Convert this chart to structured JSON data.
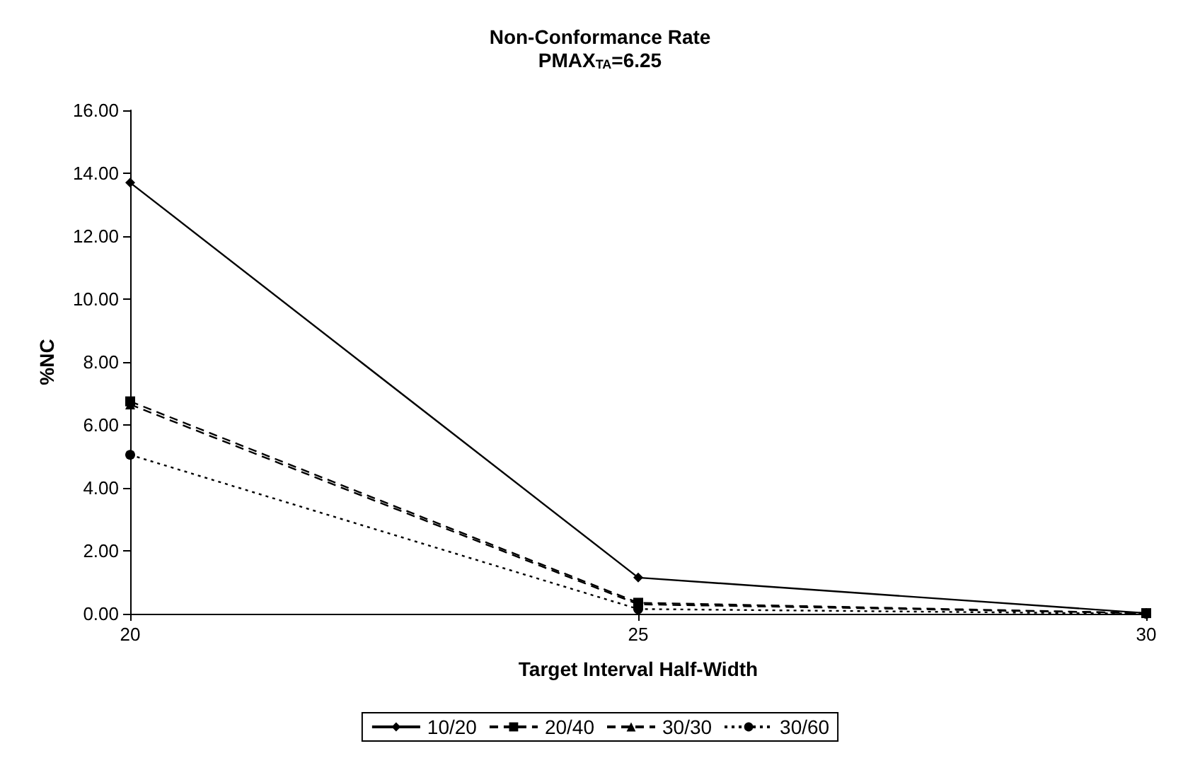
{
  "chart_data": {
    "type": "line",
    "title": "Non-Conformance Rate",
    "subtitle": "PMAX$_{TA}$=6.25",
    "xlabel": "Target Interval Half-Width",
    "ylabel": "%NC",
    "x": [
      20,
      25,
      30
    ],
    "series": [
      {
        "name": "10/20",
        "color": "#000000",
        "values": [
          13.7,
          1.15,
          0.02
        ],
        "marker": "diamond",
        "line_style": "solid"
      },
      {
        "name": "20/40",
        "color": "#000000",
        "values": [
          6.75,
          0.35,
          0.02
        ],
        "marker": "square",
        "line_style": "dashed"
      },
      {
        "name": "30/30",
        "color": "#000000",
        "values": [
          6.65,
          0.3,
          0.02
        ],
        "marker": "triangle",
        "line_style": "dashed"
      },
      {
        "name": "30/60",
        "color": "#000000",
        "values": [
          5.05,
          0.15,
          0.0
        ],
        "marker": "circle",
        "line_style": "dotted"
      }
    ],
    "xlim": [
      20,
      30
    ],
    "xticks": [
      20,
      25,
      30
    ],
    "ylim": [
      0,
      16
    ],
    "yticks": [
      {
        "value": 0,
        "label": "0.00"
      },
      {
        "value": 2,
        "label": "2.00"
      },
      {
        "value": 4,
        "label": "4.00"
      },
      {
        "value": 6,
        "label": "6.00"
      },
      {
        "value": 8,
        "label": "8.00"
      },
      {
        "value": 10,
        "label": "10.00"
      },
      {
        "value": 12,
        "label": "12.00"
      },
      {
        "value": 14,
        "label": "14.00"
      },
      {
        "value": 16,
        "label": "16.00"
      }
    ],
    "grid": false,
    "legend": "bottom"
  }
}
